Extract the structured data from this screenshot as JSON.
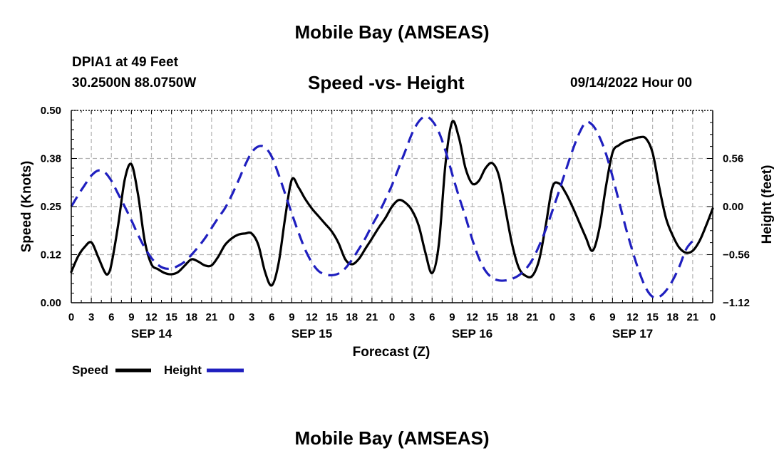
{
  "header": {
    "title": "Mobile Bay (AMSEAS)",
    "station": "DPIA1 at 49 Feet",
    "coordinates": "30.2500N  88.0750W",
    "subtitle": "Speed -vs- Height",
    "timestamp": "09/14/2022 Hour 00"
  },
  "footer": {
    "title": "Mobile Bay (AMSEAS)"
  },
  "chart_data": {
    "type": "line",
    "title": "Speed -vs- Height",
    "xlabel": "Forecast (Z)",
    "ylabel": "Speed (Knots)",
    "y2label": "Height (feet)",
    "x_range": [
      0,
      96
    ],
    "ylim": [
      0,
      0.5
    ],
    "y2lim": [
      -1.12,
      1.12
    ],
    "y_ticks": [
      "0.00",
      "0.12",
      "0.25",
      "0.38",
      "0.50"
    ],
    "y_tick_values": [
      0,
      0.125,
      0.25,
      0.375,
      0.5
    ],
    "y2_ticks": [
      "−1.12",
      "−0.56",
      "0.00",
      "0.56"
    ],
    "y2_tick_values": [
      -1.12,
      -0.56,
      0,
      0.56
    ],
    "x_ticks": [
      {
        "hour": 0,
        "label": "0"
      },
      {
        "hour": 3,
        "label": "3"
      },
      {
        "hour": 6,
        "label": "6"
      },
      {
        "hour": 9,
        "label": "9"
      },
      {
        "hour": 12,
        "label": "12"
      },
      {
        "hour": 15,
        "label": "15"
      },
      {
        "hour": 18,
        "label": "18"
      },
      {
        "hour": 21,
        "label": "21"
      },
      {
        "hour": 24,
        "label": "0"
      },
      {
        "hour": 27,
        "label": "3"
      },
      {
        "hour": 30,
        "label": "6"
      },
      {
        "hour": 33,
        "label": "9"
      },
      {
        "hour": 36,
        "label": "12"
      },
      {
        "hour": 39,
        "label": "15"
      },
      {
        "hour": 42,
        "label": "18"
      },
      {
        "hour": 45,
        "label": "21"
      },
      {
        "hour": 48,
        "label": "0"
      },
      {
        "hour": 51,
        "label": "3"
      },
      {
        "hour": 54,
        "label": "6"
      },
      {
        "hour": 57,
        "label": "9"
      },
      {
        "hour": 60,
        "label": "12"
      },
      {
        "hour": 63,
        "label": "15"
      },
      {
        "hour": 66,
        "label": "18"
      },
      {
        "hour": 69,
        "label": "21"
      },
      {
        "hour": 72,
        "label": "0"
      },
      {
        "hour": 75,
        "label": "3"
      },
      {
        "hour": 78,
        "label": "6"
      },
      {
        "hour": 81,
        "label": "9"
      },
      {
        "hour": 84,
        "label": "12"
      },
      {
        "hour": 87,
        "label": "15"
      },
      {
        "hour": 90,
        "label": "18"
      },
      {
        "hour": 93,
        "label": "21"
      },
      {
        "hour": 96,
        "label": "0"
      }
    ],
    "day_labels": [
      {
        "hour": 12,
        "label": "SEP 14"
      },
      {
        "hour": 36,
        "label": "SEP 15"
      },
      {
        "hour": 60,
        "label": "SEP 16"
      },
      {
        "hour": 84,
        "label": "SEP 17"
      }
    ],
    "series": [
      {
        "name": "Speed",
        "axis": "left",
        "color": "#000000",
        "dash": "solid",
        "points": [
          [
            0,
            0.08
          ],
          [
            1,
            0.12
          ],
          [
            2,
            0.145
          ],
          [
            3,
            0.157
          ],
          [
            4,
            0.12
          ],
          [
            5,
            0.08
          ],
          [
            5.5,
            0.075
          ],
          [
            6,
            0.1
          ],
          [
            7,
            0.2
          ],
          [
            8,
            0.32
          ],
          [
            9,
            0.36
          ],
          [
            10,
            0.28
          ],
          [
            11,
            0.16
          ],
          [
            12,
            0.1
          ],
          [
            13,
            0.087
          ],
          [
            14,
            0.077
          ],
          [
            15,
            0.074
          ],
          [
            16,
            0.08
          ],
          [
            17,
            0.097
          ],
          [
            18,
            0.113
          ],
          [
            19,
            0.107
          ],
          [
            20,
            0.097
          ],
          [
            21,
            0.097
          ],
          [
            22,
            0.12
          ],
          [
            23,
            0.15
          ],
          [
            24,
            0.167
          ],
          [
            25,
            0.177
          ],
          [
            26,
            0.18
          ],
          [
            27,
            0.18
          ],
          [
            28,
            0.15
          ],
          [
            29,
            0.08
          ],
          [
            30,
            0.045
          ],
          [
            31,
            0.1
          ],
          [
            32,
            0.22
          ],
          [
            33,
            0.32
          ],
          [
            34,
            0.3
          ],
          [
            35,
            0.27
          ],
          [
            36,
            0.245
          ],
          [
            37,
            0.225
          ],
          [
            38,
            0.205
          ],
          [
            39,
            0.185
          ],
          [
            40,
            0.155
          ],
          [
            41,
            0.113
          ],
          [
            42,
            0.1
          ],
          [
            43,
            0.113
          ],
          [
            44,
            0.14
          ],
          [
            45,
            0.167
          ],
          [
            46,
            0.195
          ],
          [
            47,
            0.22
          ],
          [
            48,
            0.25
          ],
          [
            49,
            0.267
          ],
          [
            50,
            0.26
          ],
          [
            51,
            0.24
          ],
          [
            52,
            0.2
          ],
          [
            53,
            0.13
          ],
          [
            54,
            0.077
          ],
          [
            55,
            0.15
          ],
          [
            56,
            0.36
          ],
          [
            57,
            0.47
          ],
          [
            58,
            0.43
          ],
          [
            59,
            0.35
          ],
          [
            60,
            0.31
          ],
          [
            61,
            0.317
          ],
          [
            62,
            0.35
          ],
          [
            63,
            0.363
          ],
          [
            64,
            0.33
          ],
          [
            65,
            0.24
          ],
          [
            66,
            0.15
          ],
          [
            67,
            0.09
          ],
          [
            68,
            0.07
          ],
          [
            69,
            0.07
          ],
          [
            70,
            0.11
          ],
          [
            71,
            0.2
          ],
          [
            72,
            0.3
          ],
          [
            73,
            0.31
          ],
          [
            74,
            0.285
          ],
          [
            75,
            0.25
          ],
          [
            76,
            0.21
          ],
          [
            77,
            0.17
          ],
          [
            78,
            0.135
          ],
          [
            79,
            0.19
          ],
          [
            80,
            0.3
          ],
          [
            81,
            0.39
          ],
          [
            82,
            0.41
          ],
          [
            83,
            0.42
          ],
          [
            84,
            0.425
          ],
          [
            85,
            0.43
          ],
          [
            86,
            0.427
          ],
          [
            87,
            0.39
          ],
          [
            88,
            0.3
          ],
          [
            89,
            0.22
          ],
          [
            90,
            0.175
          ],
          [
            91,
            0.143
          ],
          [
            92,
            0.13
          ],
          [
            93,
            0.135
          ],
          [
            94,
            0.16
          ],
          [
            95,
            0.2
          ],
          [
            96,
            0.245
          ]
        ]
      },
      {
        "name": "Height",
        "axis": "right",
        "color": "#1f1fbf",
        "dash": "dashed",
        "points": [
          [
            0,
            0.0
          ],
          [
            1,
            0.13
          ],
          [
            2,
            0.25
          ],
          [
            3,
            0.36
          ],
          [
            4,
            0.42
          ],
          [
            5,
            0.4
          ],
          [
            6,
            0.3
          ],
          [
            7,
            0.15
          ],
          [
            8,
            0.0
          ],
          [
            9,
            -0.16
          ],
          [
            10,
            -0.33
          ],
          [
            11,
            -0.48
          ],
          [
            12,
            -0.6
          ],
          [
            13,
            -0.68
          ],
          [
            14,
            -0.72
          ],
          [
            15,
            -0.72
          ],
          [
            16,
            -0.69
          ],
          [
            17,
            -0.64
          ],
          [
            18,
            -0.56
          ],
          [
            19,
            -0.47
          ],
          [
            20,
            -0.37
          ],
          [
            21,
            -0.25
          ],
          [
            22,
            -0.13
          ],
          [
            23,
            -0.02
          ],
          [
            24,
            0.13
          ],
          [
            25,
            0.3
          ],
          [
            26,
            0.48
          ],
          [
            27,
            0.63
          ],
          [
            28,
            0.7
          ],
          [
            29,
            0.69
          ],
          [
            30,
            0.58
          ],
          [
            31,
            0.38
          ],
          [
            32,
            0.15
          ],
          [
            33,
            -0.08
          ],
          [
            34,
            -0.3
          ],
          [
            35,
            -0.5
          ],
          [
            36,
            -0.65
          ],
          [
            37,
            -0.75
          ],
          [
            38,
            -0.79
          ],
          [
            39,
            -0.8
          ],
          [
            40,
            -0.78
          ],
          [
            41,
            -0.72
          ],
          [
            42,
            -0.62
          ],
          [
            43,
            -0.5
          ],
          [
            44,
            -0.37
          ],
          [
            45,
            -0.22
          ],
          [
            46,
            -0.08
          ],
          [
            47,
            0.08
          ],
          [
            48,
            0.25
          ],
          [
            49,
            0.45
          ],
          [
            50,
            0.65
          ],
          [
            51,
            0.85
          ],
          [
            52,
            0.99
          ],
          [
            53,
            1.05
          ],
          [
            54,
            1.0
          ],
          [
            55,
            0.87
          ],
          [
            56,
            0.65
          ],
          [
            57,
            0.38
          ],
          [
            58,
            0.12
          ],
          [
            59,
            -0.12
          ],
          [
            60,
            -0.38
          ],
          [
            61,
            -0.6
          ],
          [
            62,
            -0.75
          ],
          [
            63,
            -0.83
          ],
          [
            64,
            -0.86
          ],
          [
            65,
            -0.86
          ],
          [
            66,
            -0.84
          ],
          [
            67,
            -0.8
          ],
          [
            68,
            -0.73
          ],
          [
            69,
            -0.62
          ],
          [
            70,
            -0.46
          ],
          [
            71,
            -0.27
          ],
          [
            72,
            -0.05
          ],
          [
            73,
            0.18
          ],
          [
            74,
            0.42
          ],
          [
            75,
            0.65
          ],
          [
            76,
            0.85
          ],
          [
            77,
            0.98
          ],
          [
            78,
            0.95
          ],
          [
            79,
            0.82
          ],
          [
            80,
            0.62
          ],
          [
            81,
            0.35
          ],
          [
            82,
            0.05
          ],
          [
            83,
            -0.25
          ],
          [
            84,
            -0.52
          ],
          [
            85,
            -0.76
          ],
          [
            86,
            -0.95
          ],
          [
            87,
            -1.05
          ],
          [
            88,
            -1.05
          ],
          [
            89,
            -0.98
          ],
          [
            90,
            -0.86
          ],
          [
            91,
            -0.7
          ],
          [
            92,
            -0.5
          ],
          [
            93,
            -0.4
          ]
        ]
      }
    ]
  },
  "legend": {
    "speed_label": "Speed",
    "height_label": "Height",
    "speed_color": "#000000",
    "height_color": "#1f1fbf"
  }
}
